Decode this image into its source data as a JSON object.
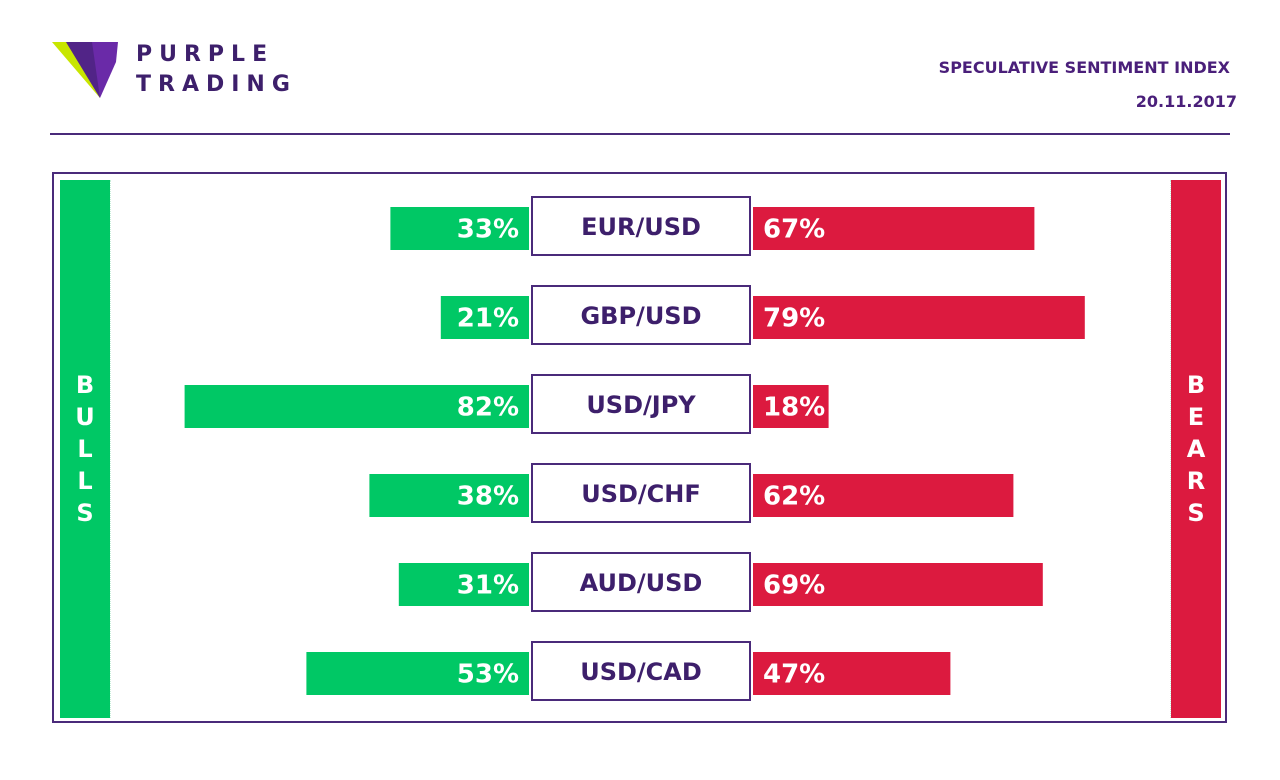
{
  "brand": {
    "line1": "PURPLE",
    "line2": "TRADING",
    "colors": {
      "purple": "#6a2aa8",
      "lime": "#c8e600"
    }
  },
  "header": {
    "title": "SPECULATIVE SENTIMENT INDEX",
    "date": "20.11.2017"
  },
  "sides": {
    "bulls_label": "BULLS",
    "bears_label": "BEARS"
  },
  "colors": {
    "bulls": "#00c865",
    "bears": "#dc1a3f",
    "frame": "#4a2a7a",
    "text_dark": "#3d1f6b"
  },
  "chart_data": {
    "type": "bar",
    "categories": [
      "EUR/USD",
      "GBP/USD",
      "USD/JPY",
      "USD/CHF",
      "AUD/USD",
      "USD/CAD"
    ],
    "series": [
      {
        "name": "BULLS",
        "values": [
          33,
          21,
          82,
          38,
          31,
          53
        ],
        "labels": [
          "33%",
          "21%",
          "82%",
          "38%",
          "31%",
          "53%"
        ]
      },
      {
        "name": "BEARS",
        "values": [
          67,
          79,
          18,
          62,
          69,
          47
        ],
        "labels": [
          "67%",
          "79%",
          "18%",
          "62%",
          "69%",
          "47%"
        ]
      }
    ],
    "unit": "%",
    "xlim": [
      0,
      100
    ]
  }
}
